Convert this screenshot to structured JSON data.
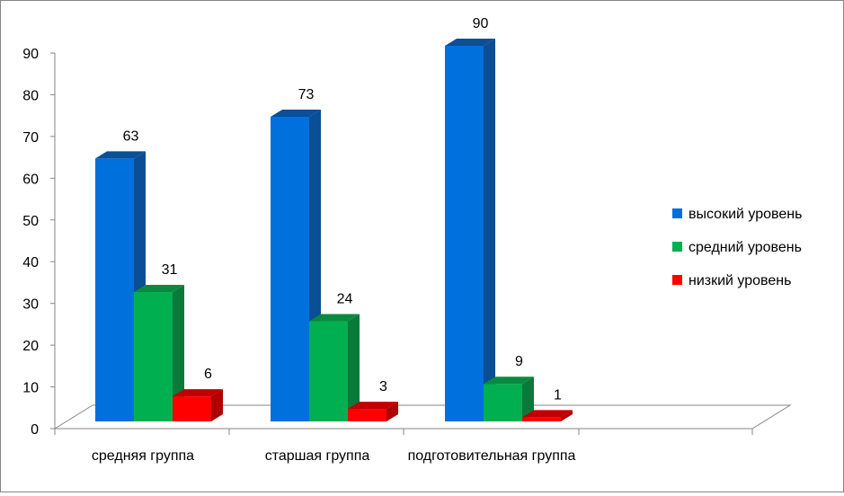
{
  "chart_data": {
    "type": "bar",
    "style": "3d-clustered-column",
    "categories": [
      "средняя группа",
      "старшая группа",
      "подготовительная группа"
    ],
    "series": [
      {
        "name": "высокий уровень",
        "values": [
          63,
          73,
          90
        ],
        "color": "#0070DC",
        "side_color": "#0A4E96",
        "top_color": "#0B4F97"
      },
      {
        "name": "средний уровень",
        "values": [
          31,
          24,
          9
        ],
        "color": "#00B050",
        "side_color": "#0A7A3A",
        "top_color": "#0A8A40"
      },
      {
        "name": "низкий уровень",
        "values": [
          6,
          3,
          1
        ],
        "color": "#FF0000",
        "side_color": "#B00000",
        "top_color": "#C00000"
      }
    ],
    "y_ticks": [
      0,
      10,
      20,
      30,
      40,
      50,
      60,
      70,
      80,
      90
    ],
    "ylim": [
      0,
      90
    ],
    "grid": false,
    "legend_position": "right",
    "data_labels": true
  }
}
